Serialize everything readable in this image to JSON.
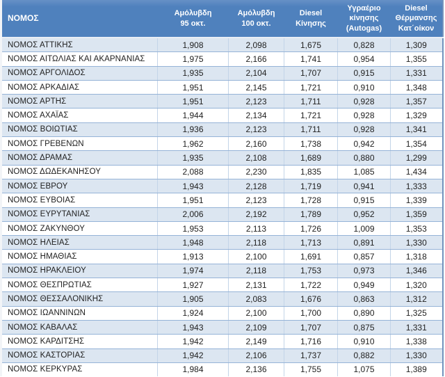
{
  "header": {
    "labels": [
      "ΝΟΜΟΣ",
      "Αμόλυβδη\n95 οκτ.",
      "Αμόλυβδη\n100 οκτ.",
      "Diesel\nΚίνησης",
      "Υγραέριο\nκίνησης\n(Autogas)",
      "Diesel\nΘέρμανσης\nΚατ΄οίκον"
    ]
  },
  "colors": {
    "header_bg": "#4f81bd",
    "header_text": "#ffffff",
    "stripe_row": "#dce6f1",
    "white_row": "#ffffff",
    "row_border": "#95b3d7",
    "outer_right_border": "#7193bd"
  },
  "chart_data": {
    "type": "table",
    "title": "",
    "columns": [
      "ΝΟΜΟΣ",
      "Αμόλυβδη 95 οκτ.",
      "Αμόλυβδη 100 οκτ.",
      "Diesel Κίνησης",
      "Υγραέριο κίνησης (Autogas)",
      "Diesel Θέρμανσης Κατ΄οίκον"
    ],
    "rows": [
      [
        "ΝΟΜΟΣ ΑΤΤΙΚΗΣ",
        "1,908",
        "2,098",
        "1,675",
        "0,828",
        "1,309"
      ],
      [
        "ΝΟΜΟΣ ΑΙΤΩΛΙΑΣ ΚΑΙ ΑΚΑΡΝΑΝΙΑΣ",
        "1,975",
        "2,166",
        "1,741",
        "0,954",
        "1,355"
      ],
      [
        "ΝΟΜΟΣ ΑΡΓΟΛΙΔΟΣ",
        "1,935",
        "2,104",
        "1,707",
        "0,915",
        "1,331"
      ],
      [
        "ΝΟΜΟΣ ΑΡΚΑΔΙΑΣ",
        "1,951",
        "2,145",
        "1,721",
        "0,910",
        "1,348"
      ],
      [
        "ΝΟΜΟΣ ΑΡΤΗΣ",
        "1,951",
        "2,123",
        "1,711",
        "0,928",
        "1,357"
      ],
      [
        "ΝΟΜΟΣ ΑΧΑΪΑΣ",
        "1,944",
        "2,134",
        "1,721",
        "0,928",
        "1,329"
      ],
      [
        "ΝΟΜΟΣ ΒΟΙΩΤΙΑΣ",
        "1,936",
        "2,123",
        "1,711",
        "0,928",
        "1,341"
      ],
      [
        "ΝΟΜΟΣ ΓΡΕΒΕΝΩΝ",
        "1,962",
        "2,160",
        "1,738",
        "0,942",
        "1,354"
      ],
      [
        "ΝΟΜΟΣ ΔΡΑΜΑΣ",
        "1,935",
        "2,108",
        "1,689",
        "0,880",
        "1,299"
      ],
      [
        "ΝΟΜΟΣ ΔΩΔΕΚΑΝΗΣΟΥ",
        "2,088",
        "2,230",
        "1,835",
        "1,085",
        "1,434"
      ],
      [
        "ΝΟΜΟΣ ΕΒΡΟΥ",
        "1,943",
        "2,128",
        "1,719",
        "0,941",
        "1,333"
      ],
      [
        "ΝΟΜΟΣ ΕΥΒΟΙΑΣ",
        "1,951",
        "2,123",
        "1,728",
        "0,915",
        "1,339"
      ],
      [
        "ΝΟΜΟΣ ΕΥΡΥΤΑΝΙΑΣ",
        "2,006",
        "2,192",
        "1,789",
        "0,952",
        "1,359"
      ],
      [
        "ΝΟΜΟΣ ΖΑΚΥΝΘΟΥ",
        "1,953",
        "2,113",
        "1,726",
        "1,009",
        "1,353"
      ],
      [
        "ΝΟΜΟΣ ΗΛΕΙΑΣ",
        "1,948",
        "2,118",
        "1,713",
        "0,891",
        "1,330"
      ],
      [
        "ΝΟΜΟΣ ΗΜΑΘΙΑΣ",
        "1,913",
        "2,100",
        "1,691",
        "0,857",
        "1,318"
      ],
      [
        "ΝΟΜΟΣ ΗΡΑΚΛΕΙΟΥ",
        "1,974",
        "2,118",
        "1,753",
        "0,973",
        "1,346"
      ],
      [
        "ΝΟΜΟΣ ΘΕΣΠΡΩΤΙΑΣ",
        "1,927",
        "2,131",
        "1,722",
        "0,949",
        "1,320"
      ],
      [
        "ΝΟΜΟΣ ΘΕΣΣΑΛΟΝΙΚΗΣ",
        "1,905",
        "2,083",
        "1,676",
        "0,863",
        "1,312"
      ],
      [
        "ΝΟΜΟΣ ΙΩΑΝΝΙΝΩΝ",
        "1,924",
        "2,100",
        "1,700",
        "0,890",
        "1,325"
      ],
      [
        "ΝΟΜΟΣ ΚΑΒΑΛΑΣ",
        "1,943",
        "2,109",
        "1,707",
        "0,875",
        "1,331"
      ],
      [
        "ΝΟΜΟΣ ΚΑΡΔΙΤΣΗΣ",
        "1,942",
        "2,149",
        "1,716",
        "0,910",
        "1,338"
      ],
      [
        "ΝΟΜΟΣ ΚΑΣΤΟΡΙΑΣ",
        "1,942",
        "2,106",
        "1,737",
        "0,882",
        "1,330"
      ],
      [
        "ΝΟΜΟΣ ΚΕΡΚΥΡΑΣ",
        "1,984",
        "2,136",
        "1,755",
        "1,075",
        "1,389"
      ]
    ]
  }
}
